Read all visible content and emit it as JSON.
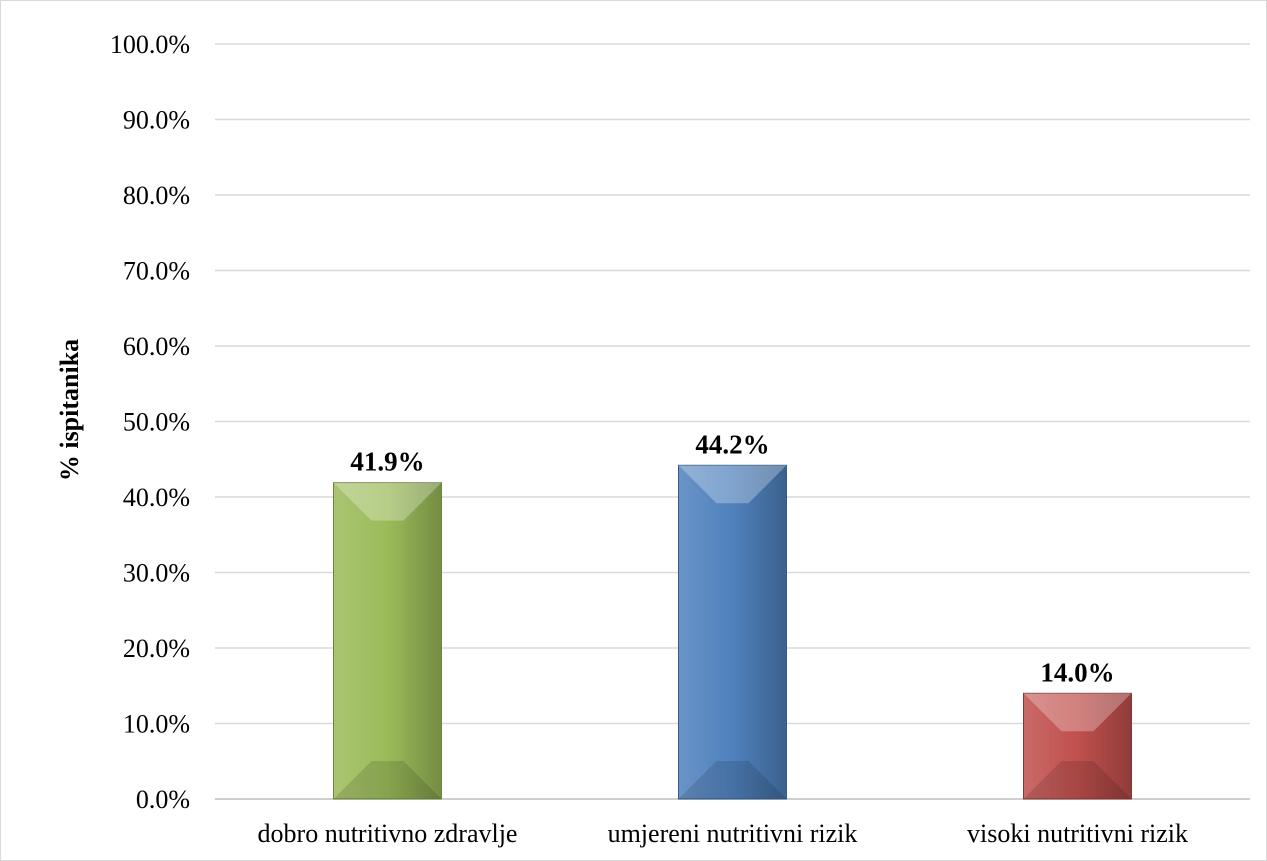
{
  "chart_data": {
    "type": "bar",
    "title": "",
    "xlabel": "",
    "ylabel": "% ispitanika",
    "ylim": [
      0,
      100
    ],
    "ytick_step": 10,
    "ytick_labels": [
      "0.0%",
      "10.0%",
      "20.0%",
      "30.0%",
      "40.0%",
      "50.0%",
      "60.0%",
      "70.0%",
      "80.0%",
      "90.0%",
      "100.0%"
    ],
    "grid": true,
    "legend": "none",
    "categories": [
      "dobro nutritivno zdravlje",
      "umjereni nutritivni rizik",
      "visoki nutritivni rizik"
    ],
    "values": [
      41.9,
      44.2,
      14.0
    ],
    "data_labels": [
      "41.9%",
      "44.2%",
      "14.0%"
    ],
    "colors": [
      "#9bbb59",
      "#4f81bd",
      "#c0504d"
    ]
  }
}
